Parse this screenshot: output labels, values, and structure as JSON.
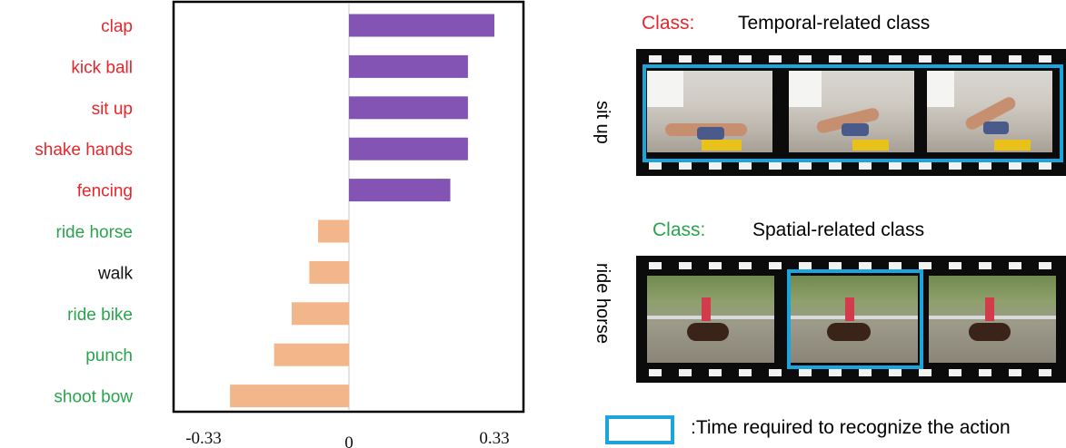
{
  "chart_data": {
    "type": "bar",
    "orientation": "horizontal",
    "categories": [
      "clap",
      "kick ball",
      "sit up",
      "shake hands",
      "fencing",
      "ride horse",
      "walk",
      "ride bike",
      "punch",
      "shoot bow"
    ],
    "values": [
      0.33,
      0.27,
      0.27,
      0.27,
      0.23,
      -0.07,
      -0.09,
      -0.13,
      -0.17,
      -0.27
    ],
    "category_colors": [
      "#e8262a",
      "#e8262a",
      "#e8262a",
      "#e8262a",
      "#e8262a",
      "#2aa44c",
      "#111111",
      "#2aa44c",
      "#2aa44c",
      "#2aa44c"
    ],
    "bar_colors": {
      "positive": "#8354b3",
      "negative": "#f3b68a"
    },
    "xticks": [
      "-0.33",
      "0",
      "0.33"
    ],
    "xlim": [
      -0.4,
      0.4
    ],
    "grid": false
  },
  "panel": {
    "temporal": {
      "class_prefix": "Class:",
      "class_name": "Temporal-related class",
      "prefix_color": "#e8262a",
      "side_label": "sit up"
    },
    "spatial": {
      "class_prefix": "Class:",
      "class_name": "Spatial-related class",
      "prefix_color": "#2aa44c",
      "side_label": "ride horse"
    },
    "legend_text": ":Time required to recognize the action",
    "highlight_color": "#1ca4dc"
  }
}
